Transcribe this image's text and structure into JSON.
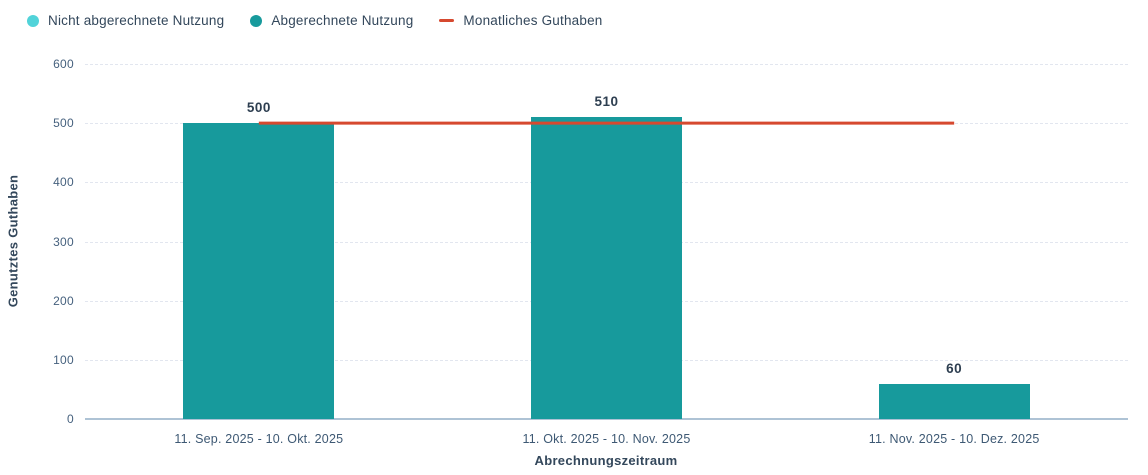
{
  "legend": {
    "items": [
      {
        "label": "Nicht abgerechnete Nutzung",
        "marker": "circle",
        "color": "#51d3d9"
      },
      {
        "label": "Abgerechnete Nutzung",
        "marker": "circle",
        "color": "#179a9c"
      },
      {
        "label": "Monatliches Guthaben",
        "marker": "dash",
        "color": "#d6492f"
      }
    ]
  },
  "chart_data": {
    "type": "bar",
    "categories": [
      "11. Sep. 2025 - 10. Okt. 2025",
      "11. Okt. 2025 - 10. Nov. 2025",
      "11. Nov. 2025 - 10. Dez. 2025"
    ],
    "series": [
      {
        "name": "Nicht abgerechnete Nutzung",
        "type": "bar",
        "color": "#51d3d9",
        "values": [
          0,
          0,
          0
        ]
      },
      {
        "name": "Abgerechnete Nutzung",
        "type": "bar",
        "color": "#179a9c",
        "values": [
          500,
          510,
          60
        ]
      },
      {
        "name": "Monatliches Guthaben",
        "type": "line",
        "color": "#d6492f",
        "values": [
          500,
          500,
          500
        ]
      }
    ],
    "bar_total_labels": [
      "500",
      "510",
      "60"
    ],
    "title": "",
    "xlabel": "Abrechnungszeitraum",
    "ylabel": "Genutztes Guthaben",
    "ylim": [
      0,
      600
    ],
    "yticks": [
      0,
      100,
      200,
      300,
      400,
      500,
      600
    ],
    "grid": "horizontal-dashed",
    "legend_position": "top-left"
  },
  "colors": {
    "text_dark": "#33475b",
    "value_label": "#2d3e50",
    "tick_text": "#46617e",
    "grid_line": "#e2e6ef",
    "axis_line": "#aec3d5",
    "background": "#ffffff"
  }
}
